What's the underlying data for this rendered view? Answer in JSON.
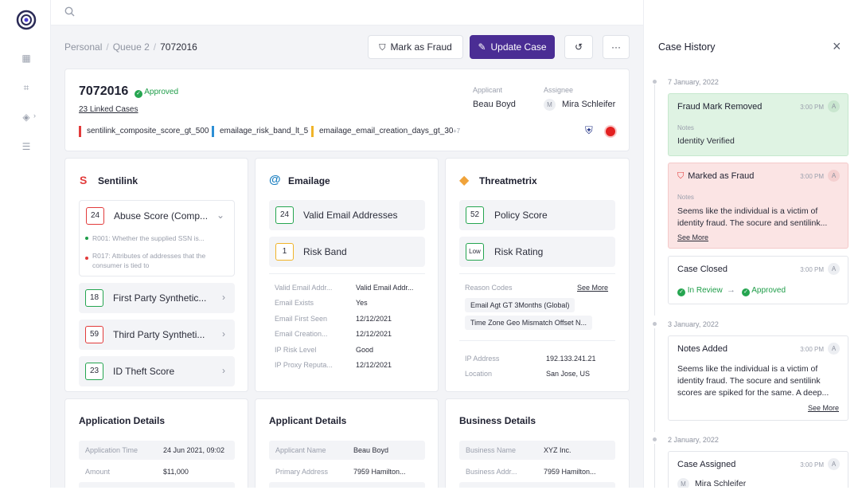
{
  "breadcrumb": {
    "items": [
      "Personal",
      "Queue 2"
    ],
    "current": "7072016"
  },
  "actions": {
    "mark_fraud": "Mark as Fraud",
    "update_case": "Update Case",
    "more": "···"
  },
  "case": {
    "id": "7072016",
    "status": "Approved",
    "linked_cases": "23 Linked Cases",
    "applicant_label": "Applicant",
    "applicant_name": "Beau Boyd",
    "assignee_label": "Assignee",
    "assignee_initial": "M",
    "assignee_name": "Mira Schleifer",
    "tags": [
      "sentilink_composite_score_gt_500",
      "emailage_risk_band_lt_5",
      "emailage_email_creation_days_gt_30"
    ],
    "tags_more": "+7"
  },
  "sentilink": {
    "title": "Sentilink",
    "abuse": {
      "score": "24",
      "label": "Abuse Score (Comp...",
      "reasons": [
        "R001: Whether the supplied SSN is...",
        "R017: Attributes of addresses that the consumer is tied to"
      ]
    },
    "rows": [
      {
        "score": "18",
        "label": "First Party Synthetic..."
      },
      {
        "score": "59",
        "label": "Third Party Syntheti..."
      },
      {
        "score": "23",
        "label": "ID Theft Score"
      }
    ]
  },
  "emailage": {
    "title": "Emailage",
    "rows": [
      {
        "score": "24",
        "label": "Valid Email Addresses"
      },
      {
        "score": "1",
        "label": "Risk Band"
      }
    ],
    "details": [
      {
        "k": "Valid Email Addr...",
        "v": "Valid Email Addr..."
      },
      {
        "k": "Email Exists",
        "v": "Yes"
      },
      {
        "k": "Email First Seen",
        "v": "12/12/2021"
      },
      {
        "k": "Email Creation...",
        "v": "12/12/2021"
      },
      {
        "k": "IP Risk Level",
        "v": "Good"
      },
      {
        "k": "IP Proxy Reputa...",
        "v": "12/12/2021"
      }
    ]
  },
  "threatmetrix": {
    "title": "Threatmetrix",
    "rows": [
      {
        "score": "52",
        "label": "Policy Score"
      },
      {
        "score": "Low",
        "label": "Risk Rating"
      }
    ],
    "reason_codes_label": "Reason Codes",
    "see_more": "See More",
    "reason_codes": [
      "Email Agt GT 3Months (Global)",
      "Time Zone Geo Mismatch Offset N..."
    ],
    "details": [
      {
        "k": "IP Address",
        "v": "192.133.241.21"
      },
      {
        "k": "Location",
        "v": "San Jose, US"
      }
    ]
  },
  "application": {
    "title": "Application Details",
    "rows": [
      {
        "k": "Application Time",
        "v": "24 Jun 2021, 09:02"
      },
      {
        "k": "Amount",
        "v": "$11,000"
      }
    ]
  },
  "applicant_details": {
    "title": "Applicant Details",
    "rows": [
      {
        "k": "Applicant Name",
        "v": "Beau Boyd"
      },
      {
        "k": "Primary Address",
        "v": "7959 Hamilton..."
      }
    ]
  },
  "business": {
    "title": "Business Details",
    "rows": [
      {
        "k": "Business Name",
        "v": "XYZ Inc."
      },
      {
        "k": "Business Addr...",
        "v": "7959 Hamilton..."
      }
    ]
  },
  "history": {
    "title": "Case History",
    "close": "×",
    "groups": [
      {
        "date": "7 January, 2022"
      },
      {
        "date": "3 January, 2022"
      },
      {
        "date": "2 January, 2022"
      }
    ],
    "entries": [
      {
        "title": "Fraud Mark Removed",
        "time": "3:00 PM",
        "avatar": "A",
        "notes_label": "Notes",
        "notes": "Identity Verified"
      },
      {
        "title": "Marked as Fraud",
        "time": "3:00 PM",
        "avatar": "A",
        "notes_label": "Notes",
        "notes": "Seems like the individual is a victim of identity fraud. The socure and sentilink...",
        "see_more": "See More"
      },
      {
        "title": "Case Closed",
        "time": "3:00 PM",
        "avatar": "A",
        "from": "In Review",
        "to": "Approved"
      },
      {
        "title": "Notes Added",
        "time": "3:00 PM",
        "avatar": "A",
        "notes": "Seems like the individual is a victim of identity fraud. The socure and sentilink scores are spiked for the same. A deep...",
        "see_more": "See More"
      },
      {
        "title": "Case Assigned",
        "time": "3:00 PM",
        "avatar": "A",
        "assignee_initial": "M",
        "assignee": "Mira Schleifer"
      }
    ]
  },
  "colors": {
    "primary": "#4a2d94",
    "success": "#1f9d49",
    "danger": "#e23b3b",
    "warning": "#f0b429",
    "info": "#2d8fd5"
  }
}
